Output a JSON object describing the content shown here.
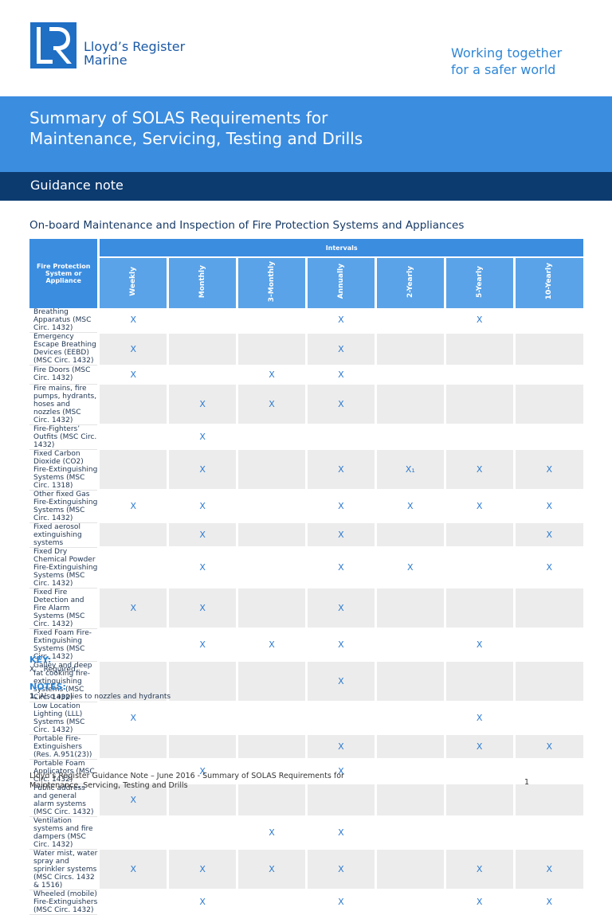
{
  "header": {
    "logo_name": "Lloyd’s Register",
    "logo_sub": "Marine",
    "tagline": [
      "Working together",
      "for a safer world"
    ]
  },
  "banner": {
    "title": [
      "Summary of SOLAS Requirements for",
      "Maintenance, Servicing, Testing and Drills"
    ],
    "subtitle": "Guidance note"
  },
  "section_title": "On-board Maintenance and Inspection of Fire Protection Systems and Appliances",
  "table": {
    "column_header": "Fire Protection System or Appliance",
    "group_header": "Intervals",
    "intervals": [
      "Weekly",
      "Monthly",
      "3-Monthly",
      "Annually",
      "2-Yearly",
      "5-Yearly",
      "10-Yearly"
    ],
    "rows": [
      [
        "Breathing Apparatus (MSC Circ. 1432)",
        "X",
        null,
        null,
        "X",
        null,
        "X",
        null
      ],
      [
        "Emergency Escape Breathing Devices (EEBD) (MSC Circ. 1432)",
        "X",
        null,
        null,
        "X",
        null,
        null,
        null
      ],
      [
        "Fire Doors (MSC Circ. 1432)",
        "X",
        null,
        "X",
        "X",
        null,
        null,
        null
      ],
      [
        "Fire mains, fire pumps, hydrants, hoses and nozzles (MSC Circ. 1432)",
        null,
        "X",
        "X",
        "X",
        null,
        null,
        null
      ],
      [
        "Fire-Fighters’ Outfits (MSC Circ. 1432)",
        null,
        "X",
        null,
        null,
        null,
        null,
        null
      ],
      [
        "Fixed Carbon Dioxide (CO2) Fire-Extinguishing Systems (MSC Circ. 1318)",
        null,
        "X",
        null,
        "X",
        "X₁",
        "X",
        "X"
      ],
      [
        "Other fixed Gas Fire-Extinguishing Systems (MSC Circ. 1432)",
        "X",
        "X",
        null,
        "X",
        "X",
        "X",
        "X"
      ],
      [
        "Fixed aerosol extinguishing systems",
        null,
        "X",
        null,
        "X",
        null,
        null,
        "X"
      ],
      [
        "Fixed Dry Chemical Powder Fire-Extinguishing Systems (MSC Circ. 1432)",
        null,
        "X",
        null,
        "X",
        "X",
        null,
        "X"
      ],
      [
        "Fixed Fire Detection and Fire Alarm Systems (MSC Circ. 1432)",
        "X",
        "X",
        null,
        "X",
        null,
        null,
        null
      ],
      [
        "Fixed Foam Fire-Extinguishing Systems (MSC Circ. 1432)",
        null,
        "X",
        "X",
        "X",
        null,
        "X",
        null
      ],
      [
        "Galley and deep fat cooking fire-extinguishing systems (MSC Circ. 1432)",
        null,
        null,
        null,
        "X",
        null,
        null,
        null
      ],
      [
        "Low Location Lighting (LLL) Systems (MSC Circ. 1432)",
        "X",
        null,
        null,
        null,
        null,
        "X",
        null
      ],
      [
        "Portable Fire-Extinguishers (Res. A.951(23))",
        null,
        null,
        null,
        "X",
        null,
        "X",
        "X"
      ],
      [
        "Portable Foam Applicators (MSC Circ. 1432)",
        null,
        "X",
        null,
        "X",
        null,
        null,
        null
      ],
      [
        "Public address and general alarm systems (MSC Circ. 1432)",
        "X",
        null,
        null,
        null,
        null,
        null,
        null
      ],
      [
        "Ventilation systems and fire dampers (MSC Circ. 1432)",
        null,
        null,
        "X",
        "X",
        null,
        null,
        null
      ],
      [
        "Water mist, water spray and sprinkler systems (MSC Circs. 1432 & 1516)",
        "X",
        "X",
        "X",
        "X",
        null,
        "X",
        "X"
      ],
      [
        "Wheeled (mobile) Fire-Extinguishers (MSC Circ. 1432)",
        null,
        "X",
        null,
        "X",
        null,
        "X",
        "X"
      ]
    ]
  },
  "key": {
    "title": "KEY:",
    "items": [
      {
        "symbol": "X",
        "meaning": "Required"
      }
    ]
  },
  "notes": {
    "title": "NOTES:",
    "items": [
      {
        "number": "1.",
        "text": "Also applies to nozzles and hydrants"
      }
    ]
  },
  "footer": {
    "lines": [
      "Lloyd’s Register Guidance Note – June 2016 - Summary of SOLAS Requirements for",
      "Maintenance, Servicing, Testing and Drills"
    ],
    "page": "1"
  }
}
